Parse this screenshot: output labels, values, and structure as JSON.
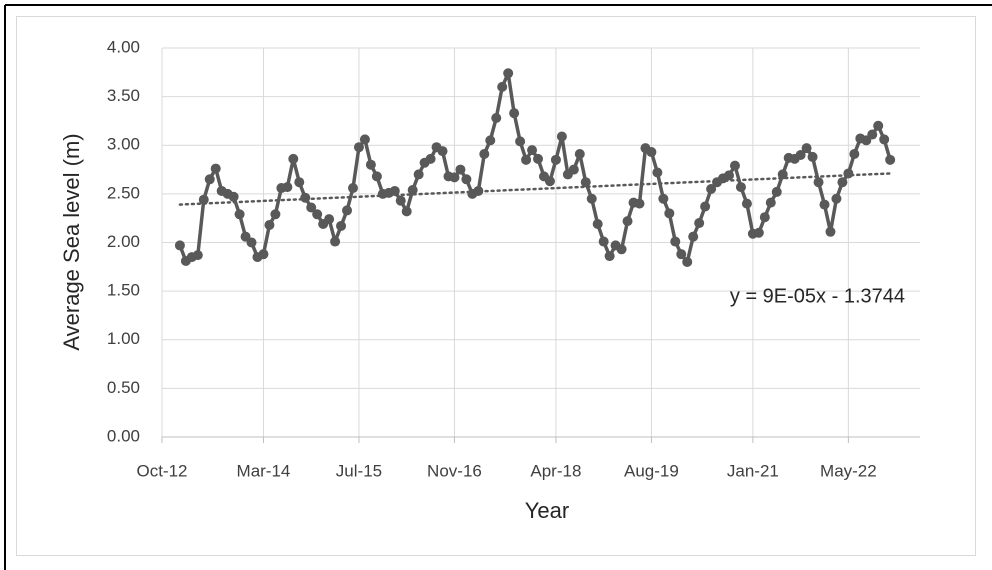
{
  "chart_data": {
    "type": "line",
    "x_label": "Year",
    "y_label": "Average  Sea level (m)",
    "color": "#595959",
    "x": [
      "2013-01",
      "2013-02",
      "2013-03",
      "2013-04",
      "2013-05",
      "2013-06",
      "2013-07",
      "2013-08",
      "2013-09",
      "2013-10",
      "2013-11",
      "2013-12",
      "2014-01",
      "2014-02",
      "2014-03",
      "2014-04",
      "2014-05",
      "2014-06",
      "2014-07",
      "2014-08",
      "2014-09",
      "2014-10",
      "2014-11",
      "2014-12",
      "2015-01",
      "2015-02",
      "2015-03",
      "2015-04",
      "2015-05",
      "2015-06",
      "2015-07",
      "2015-08",
      "2015-09",
      "2015-10",
      "2015-11",
      "2015-12",
      "2016-01",
      "2016-02",
      "2016-03",
      "2016-04",
      "2016-05",
      "2016-06",
      "2016-07",
      "2016-08",
      "2016-09",
      "2016-10",
      "2016-11",
      "2016-12",
      "2017-01",
      "2017-02",
      "2017-03",
      "2017-04",
      "2017-05",
      "2017-06",
      "2017-07",
      "2017-08",
      "2017-09",
      "2017-10",
      "2017-11",
      "2017-12",
      "2018-01",
      "2018-02",
      "2018-03",
      "2018-04",
      "2018-05",
      "2018-06",
      "2018-07",
      "2018-08",
      "2018-09",
      "2018-10",
      "2018-11",
      "2018-12",
      "2019-01",
      "2019-02",
      "2019-03",
      "2019-04",
      "2019-05",
      "2019-06",
      "2019-07",
      "2019-08",
      "2019-09",
      "2019-10",
      "2019-11",
      "2019-12",
      "2020-01",
      "2020-02",
      "2020-03",
      "2020-04",
      "2020-05",
      "2020-06",
      "2020-07",
      "2020-08",
      "2020-09",
      "2020-10",
      "2020-11",
      "2020-12",
      "2021-01",
      "2021-02",
      "2021-03",
      "2021-04",
      "2021-05",
      "2021-06",
      "2021-07",
      "2021-08",
      "2021-09",
      "2021-10",
      "2021-11",
      "2021-12",
      "2022-01",
      "2022-02",
      "2022-03",
      "2022-04",
      "2022-05",
      "2022-06",
      "2022-07",
      "2022-08",
      "2022-09",
      "2022-10",
      "2022-11",
      "2022-12"
    ],
    "values": [
      1.97,
      1.81,
      1.85,
      1.87,
      2.44,
      2.65,
      2.76,
      2.53,
      2.5,
      2.47,
      2.29,
      2.06,
      2.0,
      1.85,
      1.88,
      2.18,
      2.29,
      2.56,
      2.57,
      2.86,
      2.62,
      2.46,
      2.36,
      2.29,
      2.19,
      2.24,
      2.01,
      2.17,
      2.33,
      2.56,
      2.98,
      3.06,
      2.8,
      2.68,
      2.5,
      2.51,
      2.53,
      2.43,
      2.32,
      2.54,
      2.7,
      2.82,
      2.86,
      2.98,
      2.94,
      2.68,
      2.67,
      2.75,
      2.65,
      2.5,
      2.53,
      2.91,
      3.05,
      3.28,
      3.6,
      3.74,
      3.33,
      3.04,
      2.85,
      2.95,
      2.86,
      2.68,
      2.63,
      2.85,
      3.09,
      2.7,
      2.75,
      2.91,
      2.62,
      2.45,
      2.19,
      2.01,
      1.86,
      1.97,
      1.93,
      2.22,
      2.41,
      2.4,
      2.97,
      2.93,
      2.72,
      2.45,
      2.3,
      2.01,
      1.88,
      1.8,
      2.06,
      2.2,
      2.37,
      2.55,
      2.62,
      2.66,
      2.69,
      2.79,
      2.57,
      2.4,
      2.09,
      2.1,
      2.26,
      2.41,
      2.52,
      2.7,
      2.87,
      2.86,
      2.9,
      2.97,
      2.88,
      2.62,
      2.39,
      2.11,
      2.45,
      2.62,
      2.71,
      2.91,
      3.07,
      3.05,
      3.11,
      3.2,
      3.06,
      2.85
    ],
    "trendline": {
      "equation": "y = 9E-05x - 1.3744",
      "values": [
        2.39,
        2.71
      ]
    },
    "xlim": [
      "2012-10",
      "2023-05"
    ],
    "xticks": [
      {
        "value": "2012-10",
        "label": "Oct-12"
      },
      {
        "value": "2014-03",
        "label": "Mar-14"
      },
      {
        "value": "2015-07",
        "label": "Jul-15"
      },
      {
        "value": "2016-11",
        "label": "Nov-16"
      },
      {
        "value": "2018-04",
        "label": "Apr-18"
      },
      {
        "value": "2019-08",
        "label": "Aug-19"
      },
      {
        "value": "2021-01",
        "label": "Jan-21"
      },
      {
        "value": "2022-05",
        "label": "May-22"
      }
    ],
    "ylim": [
      0,
      4
    ],
    "yticks": [
      {
        "value": 0,
        "label": "0.00"
      },
      {
        "value": 0.5,
        "label": "0.50"
      },
      {
        "value": 1,
        "label": "1.00"
      },
      {
        "value": 1.5,
        "label": "1.50"
      },
      {
        "value": 2,
        "label": "2.00"
      },
      {
        "value": 2.5,
        "label": "2.50"
      },
      {
        "value": 3,
        "label": "3.00"
      },
      {
        "value": 3.5,
        "label": "3.50"
      },
      {
        "value": 4,
        "label": "4.00"
      }
    ],
    "grid": true
  }
}
